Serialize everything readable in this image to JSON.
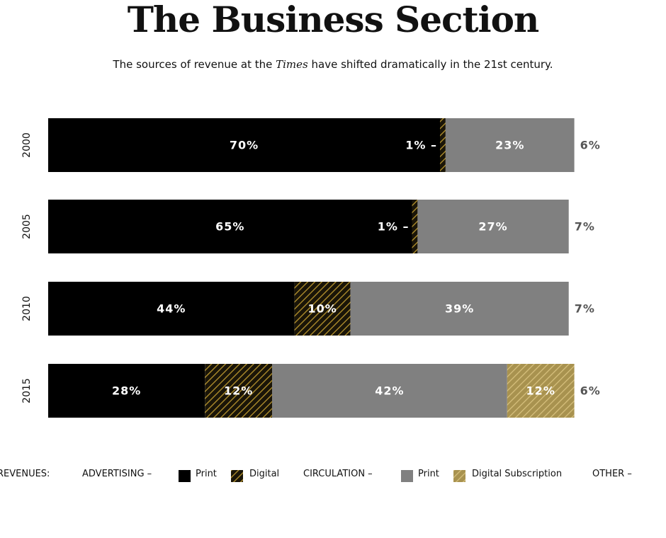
{
  "title": "The Business Section",
  "subtitle_pre": "The sources of revenue at the ",
  "subtitle_em": "Times",
  "subtitle_post": " have shifted dramatically in the 21st century.",
  "colors": {
    "print_advertising": "#000000",
    "digital_advertising_bg": "#1a1508",
    "digital_advertising_stripe": "#b8952e",
    "print_circulation": "#808080",
    "digital_subscription_bg": "#a8924f",
    "digital_subscription_stripe": "#d6bf7c"
  },
  "legend": {
    "revenues": "REVENUES:",
    "advertising": "ADVERTISING –",
    "adv_print": "Print",
    "adv_digital": "Digital",
    "circulation": "CIRCULATION –",
    "circ_print": "Print",
    "circ_digital": "Digital Subscription",
    "other": "OTHER –"
  },
  "chart_data": {
    "type": "bar",
    "orientation": "horizontal",
    "stacked": true,
    "categories": [
      "2000",
      "2005",
      "2010",
      "2015"
    ],
    "series": [
      {
        "name": "Advertising – Print",
        "values": [
          70,
          65,
          44,
          28
        ],
        "labels": [
          "70%",
          "65%",
          "44%",
          "28%"
        ]
      },
      {
        "name": "Advertising – Digital",
        "values": [
          1,
          1,
          10,
          12
        ],
        "labels": [
          "1% –",
          "1% –",
          "10%",
          "12%"
        ]
      },
      {
        "name": "Circulation – Print",
        "values": [
          23,
          27,
          39,
          42
        ],
        "labels": [
          "23%",
          "27%",
          "39%",
          "42%"
        ]
      },
      {
        "name": "Circulation – Digital Subscription",
        "values": [
          0,
          0,
          0,
          12
        ],
        "labels": [
          "",
          "",
          "",
          "12%"
        ]
      },
      {
        "name": "Other",
        "values": [
          6,
          7,
          7,
          6
        ],
        "labels": [
          "6%",
          "7%",
          "7%",
          "6%"
        ]
      }
    ],
    "grid": false,
    "legend_position": "bottom"
  }
}
